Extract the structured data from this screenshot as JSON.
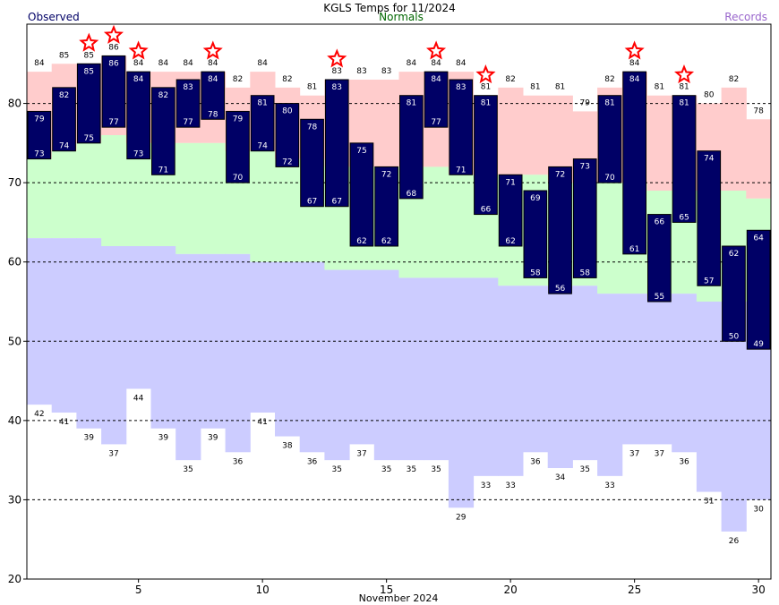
{
  "chart_data": {
    "type": "bar",
    "title": "KGLS Temps for 11/2024",
    "legend": {
      "observed": "Observed",
      "normals": "Normals",
      "records": "Records"
    },
    "xlabel": "November 2024",
    "ylim": [
      20,
      90
    ],
    "yticks": [
      20,
      30,
      40,
      50,
      60,
      70,
      80
    ],
    "xticks": [
      5,
      10,
      15,
      20,
      25,
      30
    ],
    "grid": "dashed horizontal",
    "days": [
      1,
      2,
      3,
      4,
      5,
      6,
      7,
      8,
      9,
      10,
      11,
      12,
      13,
      14,
      15,
      16,
      17,
      18,
      19,
      20,
      21,
      22,
      23,
      24,
      25,
      26,
      27,
      28,
      29,
      30
    ],
    "observed_high": [
      79,
      82,
      85,
      86,
      84,
      82,
      83,
      84,
      79,
      81,
      80,
      78,
      83,
      75,
      72,
      81,
      84,
      83,
      81,
      71,
      69,
      72,
      73,
      81,
      84,
      66,
      81,
      74,
      62,
      64
    ],
    "observed_low": [
      73,
      74,
      75,
      77,
      73,
      71,
      77,
      78,
      70,
      74,
      72,
      67,
      67,
      62,
      62,
      68,
      77,
      71,
      66,
      62,
      58,
      56,
      58,
      70,
      61,
      55,
      65,
      57,
      50,
      49
    ],
    "normal_high": [
      73,
      74,
      75,
      76,
      75,
      75,
      75,
      75,
      74,
      74,
      73,
      73,
      72,
      72,
      72,
      72,
      72,
      71,
      71,
      71,
      71,
      70,
      70,
      70,
      70,
      69,
      69,
      69,
      69,
      68
    ],
    "normal_low": [
      63,
      63,
      63,
      62,
      62,
      62,
      61,
      61,
      61,
      60,
      60,
      60,
      59,
      59,
      59,
      58,
      58,
      58,
      58,
      57,
      57,
      57,
      57,
      56,
      56,
      56,
      56,
      55,
      55,
      55
    ],
    "record_high": [
      84,
      85,
      85,
      86,
      84,
      84,
      84,
      84,
      82,
      84,
      82,
      81,
      83,
      83,
      83,
      84,
      84,
      84,
      81,
      82,
      81,
      81,
      79,
      82,
      84,
      81,
      81,
      80,
      82,
      78
    ],
    "record_low": [
      42,
      41,
      39,
      37,
      44,
      39,
      35,
      39,
      36,
      41,
      38,
      36,
      35,
      37,
      35,
      35,
      35,
      29,
      33,
      33,
      36,
      34,
      35,
      33,
      37,
      37,
      36,
      31,
      26,
      30
    ],
    "record_set_days": [
      3,
      4,
      5,
      8,
      13,
      17,
      19,
      25,
      27
    ],
    "colors": {
      "observed": "#000066",
      "normal_band": "#ccffcc",
      "record_high_band": "#ffcccc",
      "record_low_band": "#ccccff",
      "star": "#ff0000",
      "observed_legend": "#000066",
      "normals_legend": "#006600",
      "records_legend": "#9966cc"
    }
  }
}
